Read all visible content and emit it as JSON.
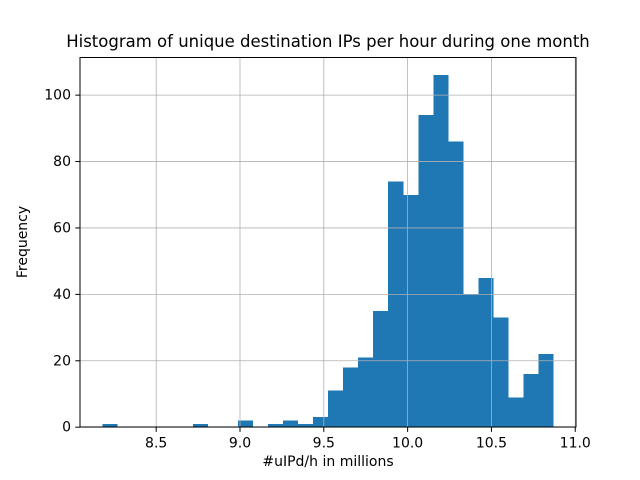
{
  "chart_data": {
    "type": "bar",
    "subtype": "histogram",
    "title": "Histogram of unique destination IPs per hour during one month",
    "xlabel": "#uIPd/h in millions",
    "ylabel": "Frequency",
    "bin_start": 8.18,
    "bin_width": 0.0897,
    "counts": [
      1,
      0,
      0,
      0,
      0,
      0,
      1,
      0,
      0,
      2,
      0,
      1,
      2,
      1,
      3,
      11,
      18,
      21,
      35,
      74,
      70,
      94,
      106,
      86,
      40,
      45,
      33,
      9,
      16,
      22
    ],
    "xlim": [
      8.0455,
      11.0045
    ],
    "ylim": [
      0,
      111.3
    ],
    "xticks": [
      8.5,
      9.0,
      9.5,
      10.0,
      10.5,
      11.0
    ],
    "xtick_labels": [
      "8.5",
      "9.0",
      "9.5",
      "10.0",
      "10.5",
      "11.0"
    ],
    "yticks": [
      0,
      20,
      40,
      60,
      80,
      100
    ],
    "ytick_labels": [
      "0",
      "20",
      "40",
      "60",
      "80",
      "100"
    ],
    "bar_color": "#1f77b4",
    "grid_color": "#b0b0b0",
    "spine_color": "#000000",
    "grid": true,
    "legend": false
  }
}
